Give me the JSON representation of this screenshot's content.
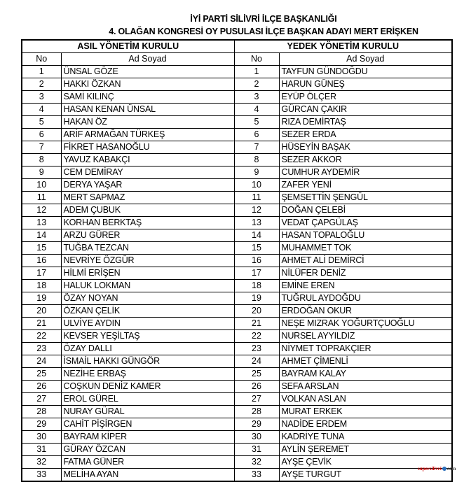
{
  "document": {
    "title_line1": "İYİ PARTİ SİLİVRİ İLÇE BAŞKANLIĞI",
    "title_line2": "4. OLAĞAN KONGRESİ OY PUSULASI İLÇE BAŞKAN ADAYI   MERT ERİŞKEN",
    "watermark": "supersilivri.com"
  },
  "table": {
    "left_header": "ASIL YÖNETİM KURULU",
    "right_header": "YEDEK YÖNETİM KURULU",
    "col_no": "No",
    "col_name": "Ad Soyad",
    "asil": [
      "ÜNSAL GÖZE",
      "HAKKI ÖZKAN",
      "SAMİ KILINÇ",
      "HASAN KENAN ÜNSAL",
      "HAKAN ÖZ",
      "ARİF ARMAĞAN TÜRKEŞ",
      "FİKRET HASANOĞLU",
      "YAVUZ KABAKÇI",
      "CEM DEMİRAY",
      "DERYA YAŞAR",
      "MERT SAPMAZ",
      "ADEM ÇUBUK",
      "KORHAN BERKTAŞ",
      "ARZU GÜRER",
      "TUĞBA TEZCAN",
      "NEVRİYE ÖZGÜR",
      "HİLMİ ERİŞEN",
      "HALUK LOKMAN",
      "ÖZAY NOYAN",
      "ÖZKAN ÇELİK",
      "ULVİYE AYDIN",
      "KEVSER YEŞİLTAŞ",
      "ÖZAY DALLI",
      "İSMAİL HAKKI GÜNGÖR",
      "NEZİHE ERBAŞ",
      "COŞKUN DENİZ KAMER",
      "EROL GÜREL",
      "NURAY GÜRAL",
      "CAHİT PİŞİRGEN",
      "BAYRAM KİPER",
      "GÜRAY ÖZCAN",
      "FATMA GÜNER",
      "MELİHA AYAN"
    ],
    "yedek": [
      "TAYFUN GÜNDOĞDU",
      "HARUN GÜNEŞ",
      "EYÜP ÖLÇER",
      "GÜRCAN ÇAKIR",
      "RIZA DEMİRTAŞ",
      "SEZER ERDA",
      "HÜSEYİN BAŞAK",
      "SEZER AKKOR",
      "CUMHUR AYDEMİR",
      "ZAFER YENİ",
      "ŞEMSETTİN ŞENGÜL",
      "DOĞAN ÇELEBİ",
      "VEDAT ÇAPGÜLAŞ",
      "HASAN TOPALOĞLU",
      "MUHAMMET TOK",
      "AHMET ALİ DEMİRCİ",
      "NİLÜFER DENİZ",
      "EMİNE EREN",
      "TUĞRUL AYDOĞDU",
      "ERDOĞAN OKUR",
      "NEŞE MIZRAK YOĞURTÇUOĞLU",
      "NURSEL AYYILDIZ",
      "NİYMET TOPRAKÇIER",
      "AHMET ÇİMENLİ",
      "BAYRAM KALAY",
      "SEFA ARSLAN",
      "VOLKAN ASLAN",
      "MURAT ERKEK",
      "NADİDE ERDEM",
      "KADRİYE TUNA",
      "AYLİN ŞEREMET",
      "AYŞE ÇEVİK",
      "AYŞE TURGUT"
    ]
  }
}
